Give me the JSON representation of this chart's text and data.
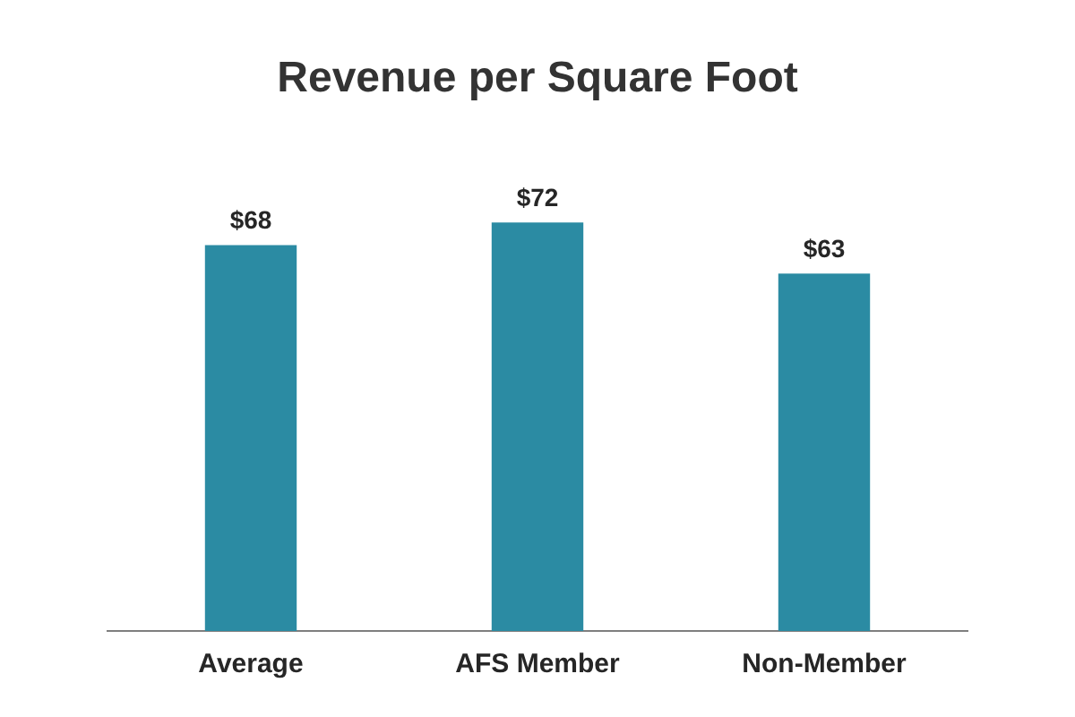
{
  "chart_data": {
    "type": "bar",
    "title": "Revenue per Square Foot",
    "categories": [
      "Average",
      "AFS Member",
      "Non-Member"
    ],
    "values": [
      68,
      72,
      63
    ],
    "value_labels": [
      "$68",
      "$72",
      "$63"
    ],
    "color": "#2b8ba3",
    "legend": false,
    "grid": false
  }
}
